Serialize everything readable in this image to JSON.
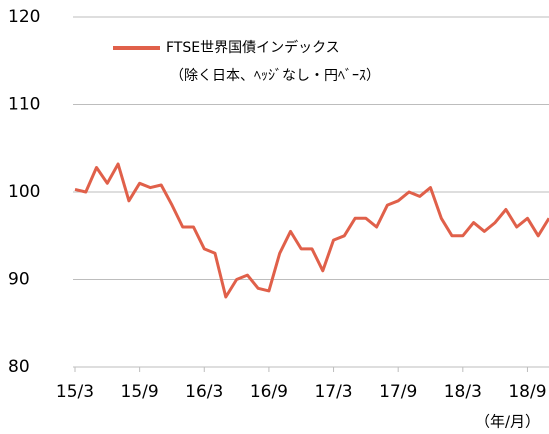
{
  "chart_data": {
    "type": "line",
    "categories": [
      "15/3",
      null,
      null,
      null,
      null,
      null,
      "15/9",
      null,
      null,
      null,
      null,
      null,
      "16/3",
      null,
      null,
      null,
      null,
      null,
      "16/9",
      null,
      null,
      null,
      null,
      null,
      "17/3",
      null,
      null,
      null,
      null,
      null,
      "17/9",
      null,
      null,
      null,
      null,
      null,
      "18/3",
      null,
      null,
      null,
      null,
      null,
      "18/9",
      null,
      null
    ],
    "series": [
      {
        "name": "FTSE世界国債インデックス",
        "color": "#e0604a",
        "values": [
          100.3,
          100.0,
          102.8,
          101.0,
          103.2,
          99.0,
          101.0,
          100.5,
          100.8,
          98.5,
          96.0,
          96.0,
          93.5,
          93.0,
          88.0,
          90.0,
          90.5,
          89.0,
          88.7,
          93.0,
          95.5,
          93.5,
          93.5,
          91.0,
          94.5,
          95.0,
          97.0,
          97.0,
          96.0,
          98.5,
          99.0,
          100.0,
          99.5,
          100.5,
          97.0,
          95.0,
          95.0,
          96.5,
          95.5,
          96.5,
          98.0,
          96.0,
          97.0,
          95.0,
          97.0
        ]
      }
    ],
    "legend_note": "（除く日本、ﾍｯｼﾞなし・円ﾍﾞｰｽ）",
    "x_unit": "（年/月）",
    "ylim": [
      80,
      120
    ],
    "yticks": [
      80,
      90,
      100,
      110,
      120
    ],
    "grid": true
  }
}
